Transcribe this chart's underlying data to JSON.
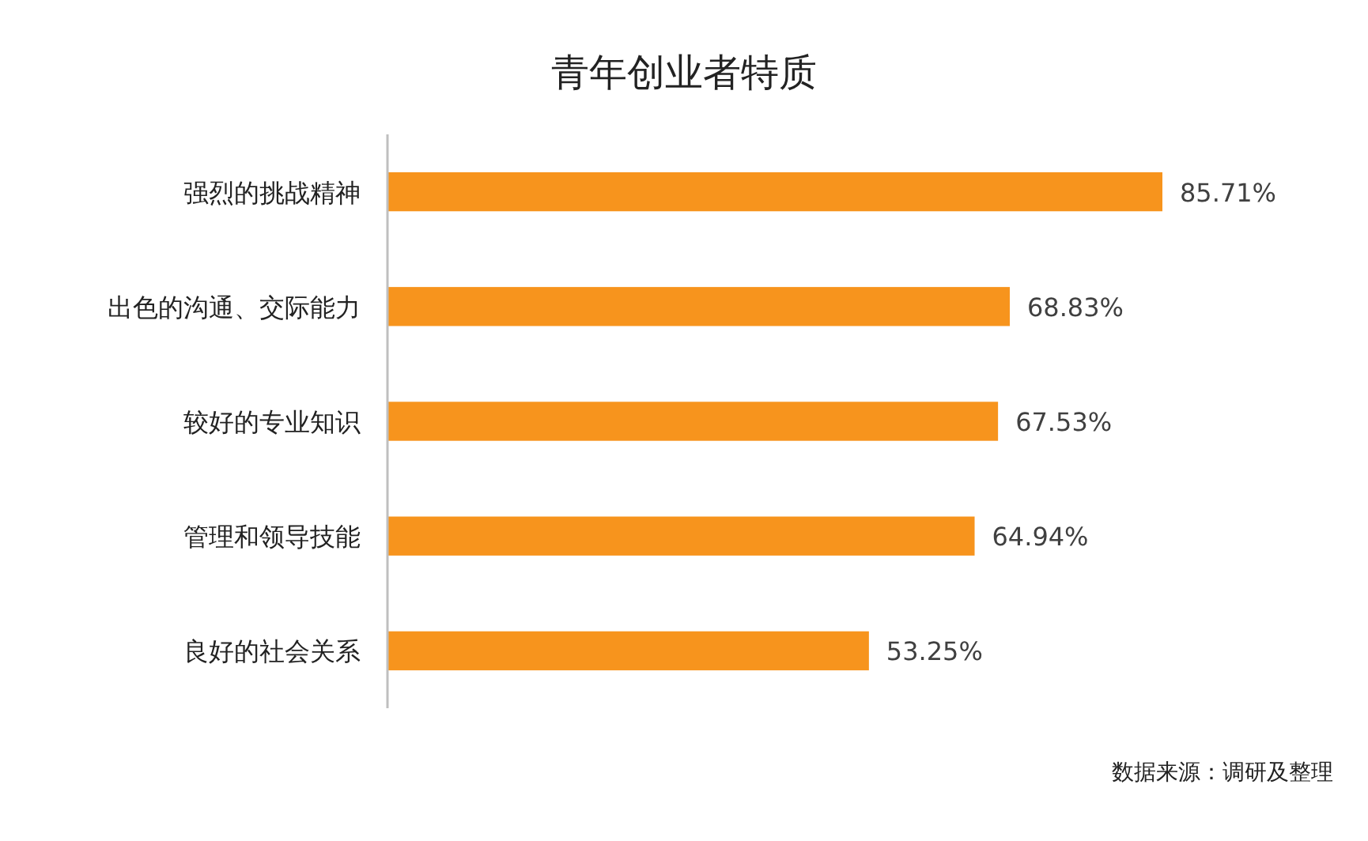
{
  "chart_data": {
    "type": "bar",
    "orientation": "horizontal",
    "title": "青年创业者特质",
    "categories": [
      "强烈的挑战精神",
      "出色的沟通、交际能力",
      "较好的专业知识",
      "管理和领导技能",
      "良好的社会关系"
    ],
    "values": [
      85.71,
      68.83,
      67.53,
      64.94,
      53.25
    ],
    "value_labels": [
      "85.71%",
      "68.83%",
      "67.53%",
      "64.94%",
      "53.25%"
    ],
    "color": "#f7941d",
    "annotations": [
      "数据来源：调研及整理"
    ]
  }
}
